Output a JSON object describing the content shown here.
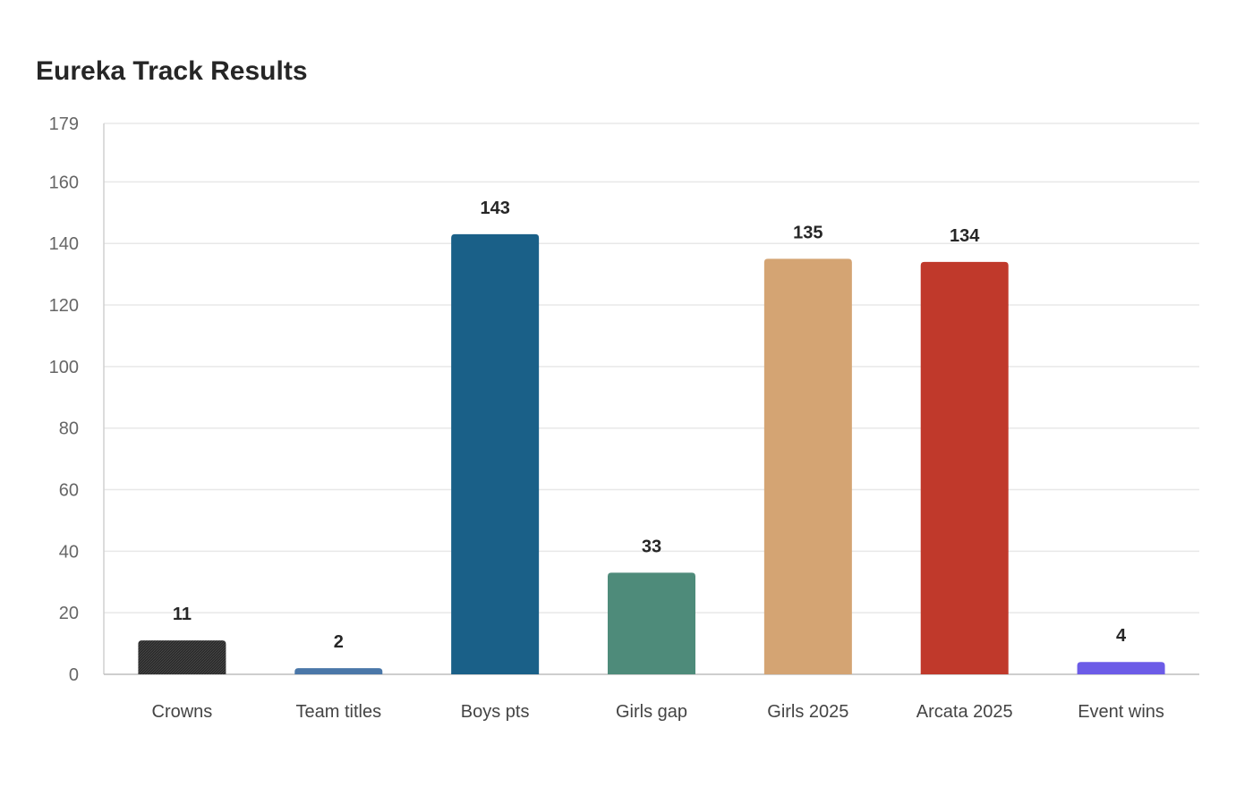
{
  "chart_data": {
    "type": "bar",
    "title": "Eureka Track Results",
    "xlabel": "",
    "ylabel": "",
    "categories": [
      "Crowns",
      "Team titles",
      "Boys pts",
      "Girls gap",
      "Girls 2025",
      "Arcata 2025",
      "Event wins"
    ],
    "values": [
      11,
      2,
      143,
      33,
      135,
      134,
      4
    ],
    "colors": [
      "#2b2b2b",
      "#4a77a8",
      "#1a6088",
      "#4e8b7a",
      "#d4a473",
      "#c0392b",
      "#6c5ce7"
    ],
    "ylim": [
      0,
      179
    ],
    "yticks": [
      0,
      20,
      40,
      60,
      80,
      100,
      120,
      140,
      160,
      179
    ],
    "grid": true,
    "data_labels": true,
    "legend": "none"
  }
}
